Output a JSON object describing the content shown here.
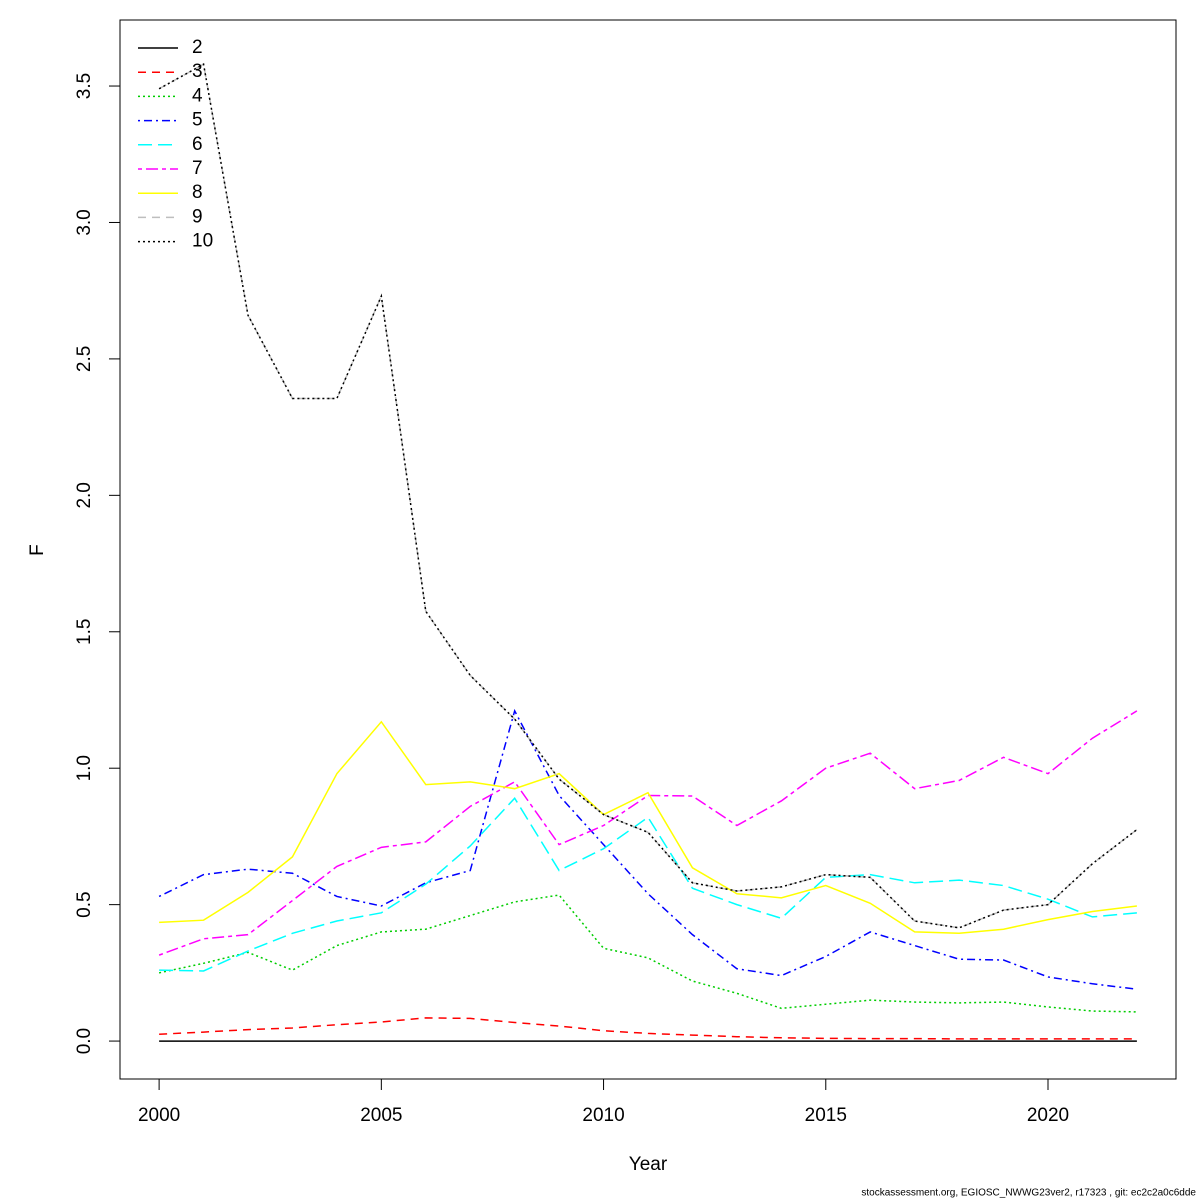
{
  "chart_data": {
    "type": "line",
    "x_label": "Year",
    "y_label": "F",
    "footer": "stockassessment.org, EGIOSC_NWWG23ver2, r17323 , git: ec2c2a0c6dde",
    "x": [
      2000,
      2001,
      2002,
      2003,
      2004,
      2005,
      2006,
      2007,
      2008,
      2009,
      2010,
      2011,
      2012,
      2013,
      2014,
      2015,
      2016,
      2017,
      2018,
      2019,
      2020,
      2021,
      2022
    ],
    "xlim": [
      1999.12,
      2022.88
    ],
    "xticks": [
      2000,
      2005,
      2010,
      2015,
      2020
    ],
    "ylim": [
      -0.139,
      3.742
    ],
    "yticks": [
      {
        "value": 0,
        "label": "0.0"
      },
      0.5,
      {
        "value": 1,
        "label": "1.0"
      },
      1.5,
      {
        "value": 2,
        "label": "2.0"
      },
      2.5,
      {
        "value": 3,
        "label": "3.0"
      },
      3.5
    ],
    "legend": "top-left",
    "series": [
      {
        "name": "2",
        "color": "#000000",
        "dash": "solid",
        "values": [
          0,
          0,
          0,
          0,
          0,
          0,
          0,
          0,
          0,
          0,
          0,
          0,
          0,
          0,
          0,
          0,
          0,
          0,
          0,
          0,
          0,
          0,
          0
        ]
      },
      {
        "name": "3",
        "color": "#ff0000",
        "dash": "dashed",
        "values": [
          0.025,
          0.033,
          0.042,
          0.048,
          0.06,
          0.07,
          0.085,
          0.083,
          0.068,
          0.055,
          0.038,
          0.028,
          0.022,
          0.016,
          0.012,
          0.01,
          0.009,
          0.009,
          0.008,
          0.008,
          0.008,
          0.008,
          0.008
        ]
      },
      {
        "name": "4",
        "color": "#00cd00",
        "dash": "dotted",
        "values": [
          0.25,
          0.285,
          0.325,
          0.26,
          0.35,
          0.4,
          0.41,
          0.46,
          0.51,
          0.535,
          0.34,
          0.305,
          0.22,
          0.175,
          0.12,
          0.135,
          0.15,
          0.143,
          0.14,
          0.143,
          0.125,
          0.11,
          0.107
        ]
      },
      {
        "name": "5",
        "color": "#0000ff",
        "dash": "dotdash",
        "values": [
          0.53,
          0.61,
          0.63,
          0.615,
          0.53,
          0.495,
          0.58,
          0.625,
          1.21,
          0.9,
          0.72,
          0.54,
          0.39,
          0.265,
          0.24,
          0.31,
          0.4,
          0.35,
          0.3,
          0.297,
          0.235,
          0.21,
          0.19
        ]
      },
      {
        "name": "6",
        "color": "#00ffff",
        "dash": "longdash",
        "values": [
          0.26,
          0.257,
          0.33,
          0.395,
          0.44,
          0.47,
          0.575,
          0.715,
          0.89,
          0.625,
          0.705,
          0.82,
          0.56,
          0.5,
          0.45,
          0.6,
          0.61,
          0.58,
          0.59,
          0.57,
          0.52,
          0.455,
          0.47
        ]
      },
      {
        "name": "7",
        "color": "#ff00ff",
        "dash": "twodash",
        "values": [
          0.315,
          0.375,
          0.39,
          0.515,
          0.64,
          0.71,
          0.73,
          0.86,
          0.95,
          0.72,
          0.79,
          0.9,
          0.898,
          0.79,
          0.88,
          1.0,
          1.055,
          0.925,
          0.955,
          1.04,
          0.98,
          1.11,
          1.21
        ]
      },
      {
        "name": "8",
        "color": "#ffff00",
        "dash": "solid",
        "values": [
          0.435,
          0.443,
          0.545,
          0.675,
          0.98,
          1.17,
          0.94,
          0.95,
          0.925,
          0.98,
          0.83,
          0.91,
          0.635,
          0.54,
          0.525,
          0.57,
          0.505,
          0.4,
          0.395,
          0.41,
          0.445,
          0.475,
          0.495
        ]
      },
      {
        "name": "9",
        "color": "#bebebe",
        "dash": "dashed",
        "values": [
          3.49,
          3.58,
          2.66,
          2.355,
          2.355,
          2.73,
          1.575,
          1.34,
          1.18,
          0.96,
          0.83,
          0.765,
          0.58,
          0.55,
          0.565,
          0.61,
          0.6,
          0.44,
          0.415,
          0.48,
          0.5,
          0.65,
          0.775
        ]
      },
      {
        "name": "10",
        "color": "#000000",
        "dash": "dotted",
        "values": [
          3.49,
          3.58,
          2.66,
          2.355,
          2.355,
          2.73,
          1.575,
          1.34,
          1.18,
          0.96,
          0.83,
          0.765,
          0.58,
          0.55,
          0.565,
          0.61,
          0.6,
          0.44,
          0.415,
          0.48,
          0.5,
          0.65,
          0.775
        ]
      }
    ]
  }
}
